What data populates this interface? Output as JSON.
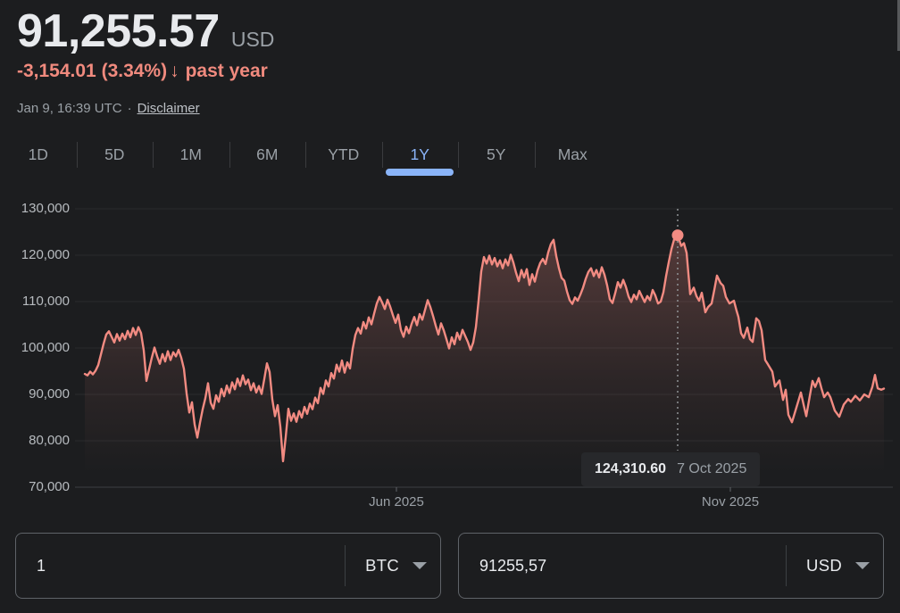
{
  "header": {
    "price": "91,255.57",
    "currency_label": "USD",
    "change_text": "-3,154.01 (3.34%)",
    "change_arrow": "↓",
    "change_period": "past year",
    "change_color": "#f08a7e",
    "timestamp": "Jan 9, 16:39 UTC",
    "separator": "·",
    "disclaimer_label": "Disclaimer"
  },
  "tabs": [
    {
      "label": "1D",
      "active": false
    },
    {
      "label": "5D",
      "active": false
    },
    {
      "label": "1M",
      "active": false
    },
    {
      "label": "6M",
      "active": false
    },
    {
      "label": "YTD",
      "active": false
    },
    {
      "label": "1Y",
      "active": true
    },
    {
      "label": "5Y",
      "active": false
    },
    {
      "label": "Max",
      "active": false
    }
  ],
  "active_tab_color": "#8ab4f8",
  "tooltip": {
    "value": "124,310.60",
    "date": "7 Oct 2025",
    "marker_offset": 664,
    "marker_value": 124310.6
  },
  "chart_data": {
    "type": "line",
    "unit": "USD",
    "line_color": "#f28b82",
    "grid": true,
    "ylim": [
      70000,
      130000
    ],
    "y_ticks": [
      130000,
      120000,
      110000,
      100000,
      90000,
      80000,
      70000
    ],
    "y_tick_labels": [
      "130,000",
      "120,000",
      "110,000",
      "100,000",
      "90,000",
      "80,000",
      "70,000"
    ],
    "x_axis_labels": [
      {
        "label": "Jun 2025",
        "offset": 349
      },
      {
        "label": "Nov 2025",
        "offset": 723
      }
    ],
    "points": [
      [
        0,
        94400
      ],
      [
        3,
        94100
      ],
      [
        6,
        94900
      ],
      [
        9,
        94300
      ],
      [
        12,
        95100
      ],
      [
        15,
        96300
      ],
      [
        18,
        98600
      ],
      [
        21,
        100900
      ],
      [
        24,
        102900
      ],
      [
        27,
        103600
      ],
      [
        30,
        102400
      ],
      [
        33,
        101200
      ],
      [
        36,
        103000
      ],
      [
        39,
        101600
      ],
      [
        42,
        103100
      ],
      [
        45,
        101900
      ],
      [
        48,
        103700
      ],
      [
        51,
        102300
      ],
      [
        54,
        104300
      ],
      [
        57,
        102800
      ],
      [
        60,
        104500
      ],
      [
        63,
        103200
      ],
      [
        66,
        99500
      ],
      [
        69,
        92900
      ],
      [
        72,
        95400
      ],
      [
        75,
        97900
      ],
      [
        78,
        100100
      ],
      [
        81,
        98200
      ],
      [
        84,
        96600
      ],
      [
        87,
        98700
      ],
      [
        90,
        97100
      ],
      [
        93,
        99300
      ],
      [
        96,
        97400
      ],
      [
        99,
        99100
      ],
      [
        102,
        98200
      ],
      [
        105,
        99600
      ],
      [
        108,
        97900
      ],
      [
        111,
        95500
      ],
      [
        114,
        90200
      ],
      [
        117,
        86100
      ],
      [
        120,
        88300
      ],
      [
        123,
        83500
      ],
      [
        126,
        80700
      ],
      [
        129,
        83900
      ],
      [
        132,
        86800
      ],
      [
        135,
        89200
      ],
      [
        138,
        92400
      ],
      [
        141,
        88200
      ],
      [
        144,
        86900
      ],
      [
        147,
        89800
      ],
      [
        150,
        88400
      ],
      [
        153,
        91200
      ],
      [
        156,
        89600
      ],
      [
        159,
        91900
      ],
      [
        162,
        90300
      ],
      [
        165,
        92600
      ],
      [
        168,
        91100
      ],
      [
        171,
        93400
      ],
      [
        174,
        91800
      ],
      [
        177,
        94100
      ],
      [
        180,
        92200
      ],
      [
        183,
        93200
      ],
      [
        186,
        90900
      ],
      [
        189,
        92400
      ],
      [
        192,
        90400
      ],
      [
        195,
        91800
      ],
      [
        198,
        90100
      ],
      [
        201,
        93300
      ],
      [
        204,
        96700
      ],
      [
        207,
        94800
      ],
      [
        210,
        88900
      ],
      [
        213,
        85300
      ],
      [
        216,
        87700
      ],
      [
        219,
        83000
      ],
      [
        222,
        75600
      ],
      [
        225,
        80800
      ],
      [
        228,
        86900
      ],
      [
        231,
        84300
      ],
      [
        234,
        85900
      ],
      [
        237,
        84100
      ],
      [
        240,
        86400
      ],
      [
        243,
        85000
      ],
      [
        246,
        87300
      ],
      [
        249,
        85800
      ],
      [
        252,
        88000
      ],
      [
        255,
        86800
      ],
      [
        258,
        89300
      ],
      [
        261,
        88100
      ],
      [
        264,
        91400
      ],
      [
        267,
        90100
      ],
      [
        270,
        93000
      ],
      [
        273,
        91700
      ],
      [
        276,
        94600
      ],
      [
        279,
        93400
      ],
      [
        282,
        96400
      ],
      [
        285,
        94900
      ],
      [
        288,
        97300
      ],
      [
        291,
        94700
      ],
      [
        294,
        96900
      ],
      [
        297,
        95600
      ],
      [
        300,
        99800
      ],
      [
        303,
        102800
      ],
      [
        306,
        104300
      ],
      [
        309,
        103100
      ],
      [
        312,
        105600
      ],
      [
        315,
        104200
      ],
      [
        318,
        106600
      ],
      [
        321,
        105100
      ],
      [
        324,
        107400
      ],
      [
        327,
        109600
      ],
      [
        330,
        111000
      ],
      [
        333,
        109800
      ],
      [
        336,
        108400
      ],
      [
        339,
        110400
      ],
      [
        342,
        108900
      ],
      [
        345,
        107100
      ],
      [
        348,
        105400
      ],
      [
        351,
        107200
      ],
      [
        354,
        103900
      ],
      [
        357,
        102400
      ],
      [
        360,
        104600
      ],
      [
        363,
        103200
      ],
      [
        366,
        105200
      ],
      [
        369,
        106700
      ],
      [
        372,
        104900
      ],
      [
        375,
        107300
      ],
      [
        378,
        106100
      ],
      [
        381,
        108200
      ],
      [
        384,
        110300
      ],
      [
        387,
        108800
      ],
      [
        390,
        106900
      ],
      [
        393,
        104800
      ],
      [
        396,
        102900
      ],
      [
        399,
        105300
      ],
      [
        402,
        103800
      ],
      [
        405,
        101900
      ],
      [
        408,
        99900
      ],
      [
        411,
        102300
      ],
      [
        414,
        100800
      ],
      [
        417,
        103300
      ],
      [
        420,
        101800
      ],
      [
        423,
        103900
      ],
      [
        426,
        102600
      ],
      [
        429,
        101300
      ],
      [
        432,
        99600
      ],
      [
        435,
        101200
      ],
      [
        438,
        104500
      ],
      [
        441,
        110200
      ],
      [
        444,
        116500
      ],
      [
        447,
        119600
      ],
      [
        450,
        118200
      ],
      [
        453,
        119900
      ],
      [
        456,
        118000
      ],
      [
        459,
        119400
      ],
      [
        462,
        117600
      ],
      [
        465,
        118900
      ],
      [
        468,
        117200
      ],
      [
        471,
        119100
      ],
      [
        474,
        117800
      ],
      [
        477,
        120100
      ],
      [
        480,
        118400
      ],
      [
        483,
        116200
      ],
      [
        486,
        114400
      ],
      [
        489,
        116800
      ],
      [
        492,
        115200
      ],
      [
        495,
        117000
      ],
      [
        498,
        113600
      ],
      [
        501,
        115900
      ],
      [
        504,
        114300
      ],
      [
        507,
        116700
      ],
      [
        510,
        118300
      ],
      [
        513,
        119200
      ],
      [
        516,
        118100
      ],
      [
        519,
        120600
      ],
      [
        522,
        122400
      ],
      [
        525,
        123300
      ],
      [
        528,
        119800
      ],
      [
        531,
        117200
      ],
      [
        534,
        115100
      ],
      [
        537,
        114500
      ],
      [
        540,
        112200
      ],
      [
        543,
        110300
      ],
      [
        546,
        109500
      ],
      [
        549,
        110900
      ],
      [
        552,
        110200
      ],
      [
        555,
        111500
      ],
      [
        558,
        113000
      ],
      [
        561,
        114900
      ],
      [
        564,
        116400
      ],
      [
        567,
        117200
      ],
      [
        570,
        115500
      ],
      [
        573,
        116800
      ],
      [
        576,
        115200
      ],
      [
        579,
        117400
      ],
      [
        582,
        115800
      ],
      [
        585,
        113500
      ],
      [
        588,
        110500
      ],
      [
        591,
        109700
      ],
      [
        594,
        111800
      ],
      [
        597,
        114200
      ],
      [
        600,
        113000
      ],
      [
        603,
        114700
      ],
      [
        606,
        113200
      ],
      [
        609,
        111100
      ],
      [
        612,
        109900
      ],
      [
        615,
        111500
      ],
      [
        618,
        110500
      ],
      [
        621,
        112300
      ],
      [
        624,
        111100
      ],
      [
        627,
        109900
      ],
      [
        630,
        111200
      ],
      [
        633,
        110300
      ],
      [
        636,
        112500
      ],
      [
        639,
        111300
      ],
      [
        642,
        109600
      ],
      [
        645,
        110000
      ],
      [
        648,
        112000
      ],
      [
        651,
        115500
      ],
      [
        654,
        118500
      ],
      [
        657,
        121300
      ],
      [
        660,
        123400
      ],
      [
        664,
        124310
      ],
      [
        668,
        122000
      ],
      [
        671,
        122600
      ],
      [
        674,
        120500
      ],
      [
        678,
        111600
      ],
      [
        682,
        113000
      ],
      [
        685,
        111200
      ],
      [
        688,
        110200
      ],
      [
        691,
        111900
      ],
      [
        695,
        107700
      ],
      [
        698,
        108800
      ],
      [
        702,
        109600
      ],
      [
        705,
        112500
      ],
      [
        708,
        115600
      ],
      [
        712,
        114000
      ],
      [
        715,
        113400
      ],
      [
        718,
        111000
      ],
      [
        722,
        109600
      ],
      [
        727,
        110200
      ],
      [
        730,
        108000
      ],
      [
        732,
        106700
      ],
      [
        735,
        103200
      ],
      [
        738,
        102200
      ],
      [
        742,
        104400
      ],
      [
        745,
        101900
      ],
      [
        748,
        101300
      ],
      [
        752,
        106400
      ],
      [
        755,
        105800
      ],
      [
        758,
        103800
      ],
      [
        762,
        97400
      ],
      [
        765,
        96500
      ],
      [
        770,
        94900
      ],
      [
        773,
        91700
      ],
      [
        778,
        93000
      ],
      [
        782,
        88800
      ],
      [
        785,
        91000
      ],
      [
        788,
        85600
      ],
      [
        792,
        84000
      ],
      [
        797,
        87200
      ],
      [
        802,
        90400
      ],
      [
        805,
        87800
      ],
      [
        808,
        85300
      ],
      [
        812,
        89700
      ],
      [
        815,
        92900
      ],
      [
        818,
        91600
      ],
      [
        822,
        93500
      ],
      [
        825,
        91300
      ],
      [
        828,
        89400
      ],
      [
        832,
        90400
      ],
      [
        835,
        89400
      ],
      [
        840,
        86500
      ],
      [
        845,
        85200
      ],
      [
        850,
        87800
      ],
      [
        855,
        89000
      ],
      [
        858,
        88400
      ],
      [
        863,
        89700
      ],
      [
        868,
        88700
      ],
      [
        873,
        90000
      ],
      [
        878,
        89400
      ],
      [
        882,
        91600
      ],
      [
        885,
        94200
      ],
      [
        888,
        91300
      ],
      [
        892,
        91000
      ],
      [
        895,
        91256
      ]
    ]
  },
  "converter": {
    "from": {
      "amount": "1",
      "currency": "BTC"
    },
    "to": {
      "amount": "91255,57",
      "currency": "USD"
    }
  }
}
